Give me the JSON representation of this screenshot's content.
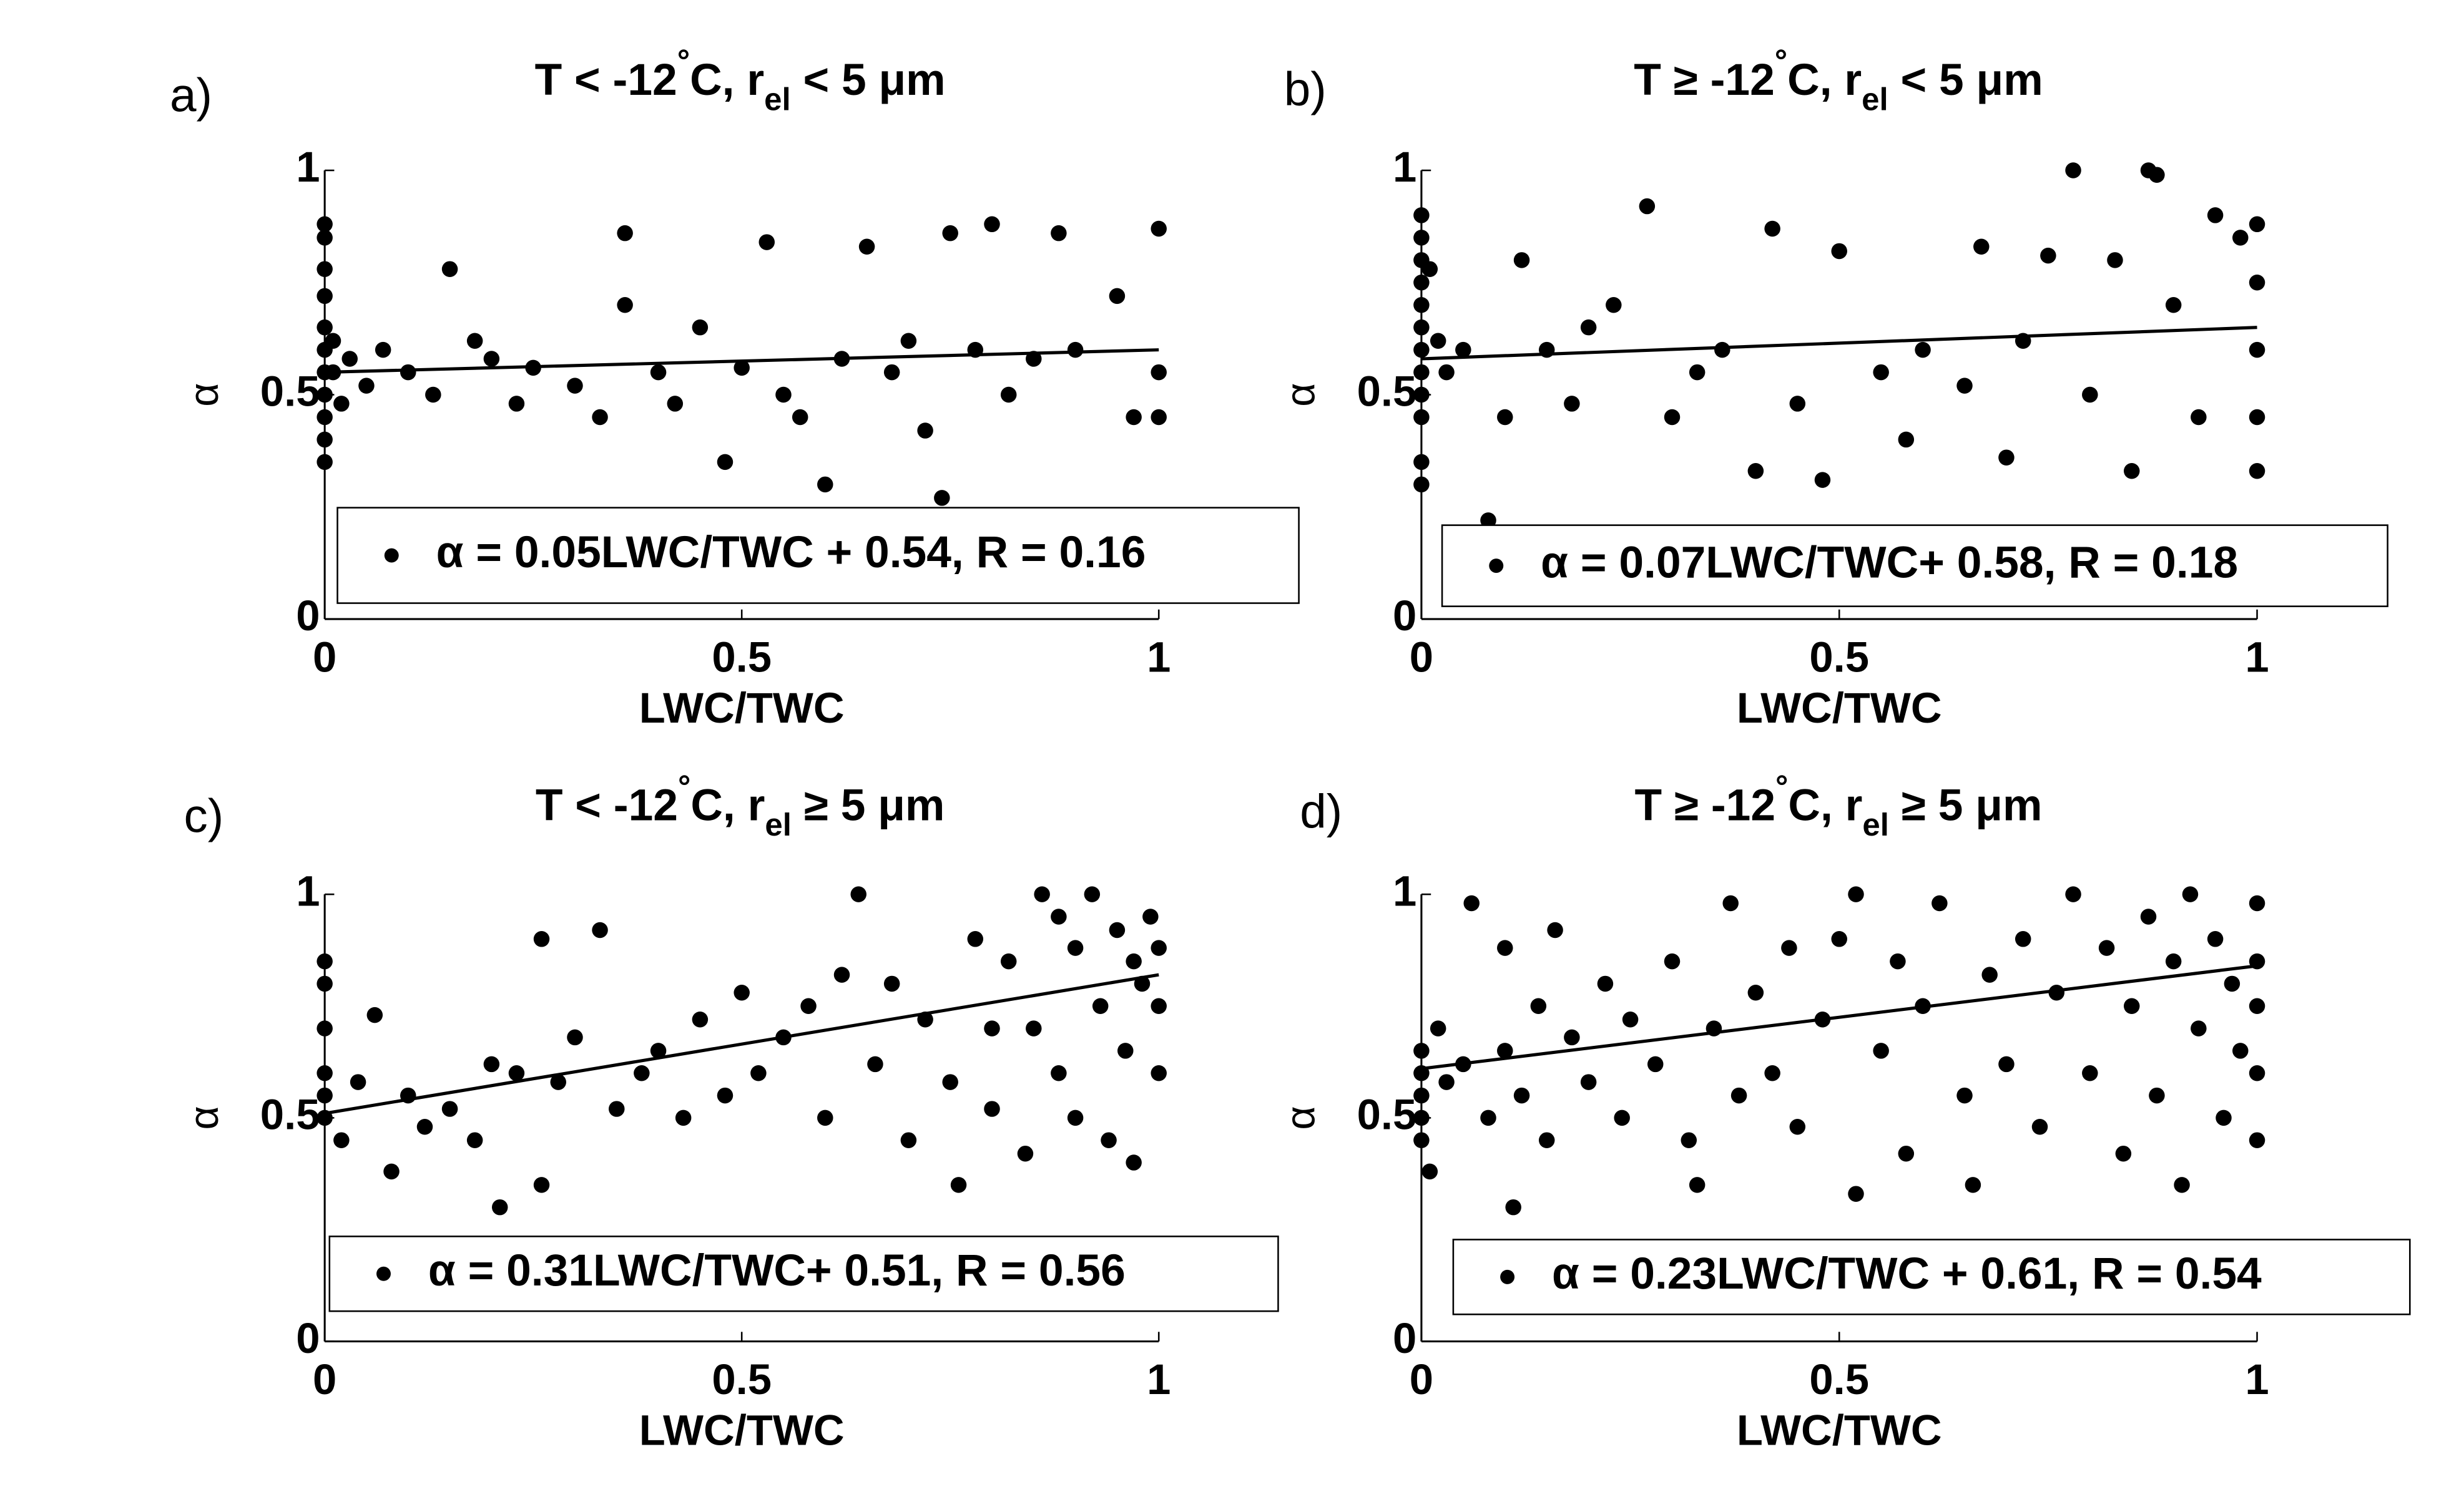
{
  "chart_data": [
    {
      "type": "scatter",
      "panel_label": "a)",
      "title": [
        "T < -12",
        "°",
        "C, r",
        "el",
        " < 5 μm"
      ],
      "xlabel": "LWC/TWC",
      "ylabel": "α",
      "xlim": [
        0,
        1
      ],
      "ylim": [
        0,
        1
      ],
      "xticks": [
        0,
        0.5,
        1
      ],
      "yticks": [
        0,
        0.5,
        1
      ],
      "series": [
        {
          "name": "α = 0.05LWC/TWC + 0.54, R = 0.16",
          "color": "#000000",
          "x": [
            0,
            0,
            0,
            0,
            0,
            0,
            0,
            0,
            0,
            0,
            0,
            0.01,
            0.01,
            0.02,
            0.03,
            0.05,
            0.07,
            0.1,
            0.13,
            0.15,
            0.18,
            0.2,
            0.23,
            0.25,
            0.3,
            0.33,
            0.36,
            0.36,
            0.4,
            0.42,
            0.45,
            0.48,
            0.5,
            0.53,
            0.55,
            0.57,
            0.6,
            0.62,
            0.65,
            0.68,
            0.7,
            0.72,
            0.74,
            0.75,
            0.78,
            0.8,
            0.82,
            0.85,
            0.88,
            0.9,
            0.95,
            0.97,
            1,
            1,
            1
          ],
          "values": [
            0.88,
            0.85,
            0.78,
            0.72,
            0.65,
            0.6,
            0.55,
            0.5,
            0.45,
            0.4,
            0.35,
            0.62,
            0.55,
            0.48,
            0.58,
            0.52,
            0.6,
            0.55,
            0.5,
            0.78,
            0.62,
            0.58,
            0.48,
            0.56,
            0.52,
            0.45,
            0.86,
            0.7,
            0.55,
            0.48,
            0.65,
            0.35,
            0.56,
            0.84,
            0.5,
            0.45,
            0.3,
            0.58,
            0.83,
            0.55,
            0.62,
            0.42,
            0.27,
            0.86,
            0.6,
            0.88,
            0.5,
            0.58,
            0.86,
            0.6,
            0.72,
            0.45,
            0.87,
            0.55,
            0.45
          ]
        }
      ],
      "fit": {
        "color": "#000000",
        "x": [
          0,
          1
        ],
        "values": [
          0.55,
          0.6
        ]
      }
    },
    {
      "type": "scatter",
      "panel_label": "b)",
      "title": [
        "T ≥ -12",
        "°",
        "C, r",
        "el",
        " < 5 μm"
      ],
      "xlabel": "LWC/TWC",
      "ylabel": "α",
      "xlim": [
        0,
        1
      ],
      "ylim": [
        0,
        1
      ],
      "xticks": [
        0,
        0.5,
        1
      ],
      "yticks": [
        0,
        0.5,
        1
      ],
      "series": [
        {
          "name": "α = 0.07LWC/TWC+ 0.58, R = 0.18",
          "color": "#000000",
          "x": [
            0,
            0,
            0,
            0,
            0,
            0,
            0,
            0,
            0,
            0,
            0,
            0,
            0.01,
            0.02,
            0.03,
            0.05,
            0.08,
            0.1,
            0.12,
            0.15,
            0.18,
            0.2,
            0.23,
            0.27,
            0.3,
            0.33,
            0.36,
            0.4,
            0.42,
            0.45,
            0.48,
            0.5,
            0.55,
            0.58,
            0.6,
            0.65,
            0.67,
            0.7,
            0.72,
            0.75,
            0.78,
            0.8,
            0.83,
            0.85,
            0.87,
            0.88,
            0.9,
            0.93,
            0.95,
            0.98,
            1,
            1,
            1,
            1,
            1
          ],
          "values": [
            0.9,
            0.85,
            0.8,
            0.75,
            0.7,
            0.65,
            0.6,
            0.55,
            0.5,
            0.45,
            0.35,
            0.3,
            0.78,
            0.62,
            0.55,
            0.6,
            0.22,
            0.45,
            0.8,
            0.6,
            0.48,
            0.65,
            0.7,
            0.92,
            0.45,
            0.55,
            0.6,
            0.33,
            0.87,
            0.48,
            0.31,
            0.82,
            0.55,
            0.4,
            0.6,
            0.52,
            0.83,
            0.36,
            0.62,
            0.81,
            1,
            0.5,
            0.8,
            0.33,
            1,
            0.99,
            0.7,
            0.45,
            0.9,
            0.85,
            0.88,
            0.75,
            0.6,
            0.45,
            0.33
          ]
        }
      ],
      "fit": {
        "color": "#000000",
        "x": [
          0,
          1
        ],
        "values": [
          0.58,
          0.65
        ]
      }
    },
    {
      "type": "scatter",
      "panel_label": "c)",
      "title": [
        "T < -12",
        "°",
        "C, r",
        "el",
        " ≥ 5 μm"
      ],
      "xlabel": "LWC/TWC",
      "ylabel": "α",
      "xlim": [
        0,
        1
      ],
      "ylim": [
        0,
        1
      ],
      "xticks": [
        0,
        0.5,
        1
      ],
      "yticks": [
        0,
        0.5,
        1
      ],
      "series": [
        {
          "name": "α = 0.31LWC/TWC+ 0.51, R = 0.56",
          "color": "#000000",
          "x": [
            0,
            0,
            0,
            0,
            0,
            0,
            0.02,
            0.04,
            0.06,
            0.08,
            0.1,
            0.12,
            0.15,
            0.18,
            0.2,
            0.21,
            0.23,
            0.26,
            0.26,
            0.28,
            0.3,
            0.33,
            0.35,
            0.38,
            0.4,
            0.43,
            0.45,
            0.48,
            0.5,
            0.52,
            0.55,
            0.58,
            0.6,
            0.62,
            0.64,
            0.66,
            0.68,
            0.7,
            0.72,
            0.75,
            0.76,
            0.78,
            0.8,
            0.82,
            0.84,
            0.85,
            0.86,
            0.88,
            0.9,
            0.9,
            0.92,
            0.93,
            0.94,
            0.95,
            0.96,
            0.97,
            0.98,
            0.99,
            1,
            1,
            1,
            0.97,
            0.88,
            0.8
          ],
          "values": [
            0.85,
            0.8,
            0.7,
            0.6,
            0.55,
            0.5,
            0.45,
            0.58,
            0.73,
            0.38,
            0.55,
            0.48,
            0.52,
            0.45,
            0.62,
            0.3,
            0.6,
            0.9,
            0.35,
            0.58,
            0.68,
            0.92,
            0.52,
            0.6,
            0.65,
            0.5,
            0.72,
            0.55,
            0.78,
            0.6,
            0.68,
            0.75,
            0.5,
            0.82,
            1,
            0.62,
            0.8,
            0.45,
            0.72,
            0.58,
            0.35,
            0.9,
            0.52,
            0.85,
            0.42,
            0.7,
            1,
            0.6,
            0.88,
            0.5,
            1,
            0.75,
            0.45,
            0.92,
            0.65,
            0.85,
            0.8,
            0.95,
            0.88,
            0.75,
            0.6,
            0.4,
            0.95,
            0.7
          ]
        }
      ],
      "fit": {
        "color": "#000000",
        "x": [
          0,
          1
        ],
        "values": [
          0.51,
          0.82
        ]
      }
    },
    {
      "type": "scatter",
      "panel_label": "d)",
      "title": [
        "T ≥ -12",
        "°",
        "C, r",
        "el",
        " ≥ 5 μm"
      ],
      "xlabel": "LWC/TWC",
      "ylabel": "α",
      "xlim": [
        0,
        1
      ],
      "ylim": [
        0,
        1
      ],
      "xticks": [
        0,
        0.5,
        1
      ],
      "yticks": [
        0,
        0.5,
        1
      ],
      "series": [
        {
          "name": "α = 0.23LWC/TWC + 0.61, R = 0.54",
          "color": "#000000",
          "x": [
            0,
            0,
            0,
            0,
            0,
            0.01,
            0.02,
            0.03,
            0.05,
            0.06,
            0.08,
            0.1,
            0.1,
            0.11,
            0.12,
            0.14,
            0.15,
            0.16,
            0.18,
            0.2,
            0.22,
            0.24,
            0.25,
            0.28,
            0.3,
            0.32,
            0.33,
            0.35,
            0.37,
            0.38,
            0.4,
            0.42,
            0.44,
            0.45,
            0.48,
            0.5,
            0.52,
            0.52,
            0.55,
            0.57,
            0.58,
            0.6,
            0.62,
            0.65,
            0.66,
            0.68,
            0.7,
            0.72,
            0.74,
            0.76,
            0.78,
            0.8,
            0.82,
            0.84,
            0.85,
            0.87,
            0.88,
            0.9,
            0.91,
            0.92,
            0.93,
            0.95,
            0.96,
            0.97,
            0.98,
            1,
            1,
            1,
            1,
            1
          ],
          "values": [
            0.65,
            0.6,
            0.55,
            0.5,
            0.45,
            0.38,
            0.7,
            0.58,
            0.62,
            0.98,
            0.5,
            0.88,
            0.65,
            0.3,
            0.55,
            0.75,
            0.45,
            0.92,
            0.68,
            0.58,
            0.8,
            0.5,
            0.72,
            0.62,
            0.85,
            0.45,
            0.35,
            0.7,
            0.98,
            0.55,
            0.78,
            0.6,
            0.88,
            0.48,
            0.72,
            0.9,
            1,
            0.33,
            0.65,
            0.85,
            0.42,
            0.75,
            0.98,
            0.55,
            0.35,
            0.82,
            0.62,
            0.9,
            0.48,
            0.78,
            1,
            0.6,
            0.88,
            0.42,
            0.75,
            0.95,
            0.55,
            0.85,
            0.35,
            1,
            0.7,
            0.9,
            0.5,
            0.8,
            0.65,
            0.98,
            0.85,
            0.75,
            0.6,
            0.45
          ]
        }
      ],
      "fit": {
        "color": "#000000",
        "x": [
          0,
          1
        ],
        "values": [
          0.61,
          0.84
        ]
      }
    }
  ]
}
